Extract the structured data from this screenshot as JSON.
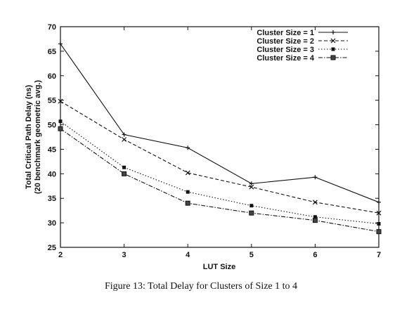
{
  "chart_data": {
    "type": "line",
    "xlabel": "LUT Size",
    "ylabel_lines": [
      "Total Critical Path Delay (ns)",
      "(20 benchmark geometric avg.)"
    ],
    "xlim": [
      2,
      7
    ],
    "ylim": [
      25,
      70
    ],
    "x": [
      2,
      3,
      4,
      5,
      6,
      7
    ],
    "y_ticks": [
      25,
      30,
      35,
      40,
      45,
      50,
      55,
      60,
      65,
      70
    ],
    "grid": false,
    "legend_position": "top-right",
    "series": [
      {
        "name": "Cluster Size = 1",
        "marker": "plus",
        "dash": "solid",
        "values": [
          66.5,
          48.0,
          45.3,
          38.0,
          39.3,
          34.2
        ]
      },
      {
        "name": "Cluster Size = 2",
        "marker": "x",
        "dash": "dashed",
        "values": [
          54.8,
          47.0,
          40.2,
          37.3,
          34.2,
          32.0
        ]
      },
      {
        "name": "Cluster Size = 3",
        "marker": "square",
        "dash": "dotted",
        "values": [
          50.7,
          41.3,
          36.3,
          33.5,
          31.2,
          29.8
        ]
      },
      {
        "name": "Cluster Size = 4",
        "marker": "box",
        "dash": "dashdot",
        "values": [
          49.2,
          40.0,
          34.0,
          32.0,
          30.5,
          28.2
        ]
      }
    ]
  },
  "caption": "Figure 13: Total Delay for Clusters of Size 1 to 4"
}
